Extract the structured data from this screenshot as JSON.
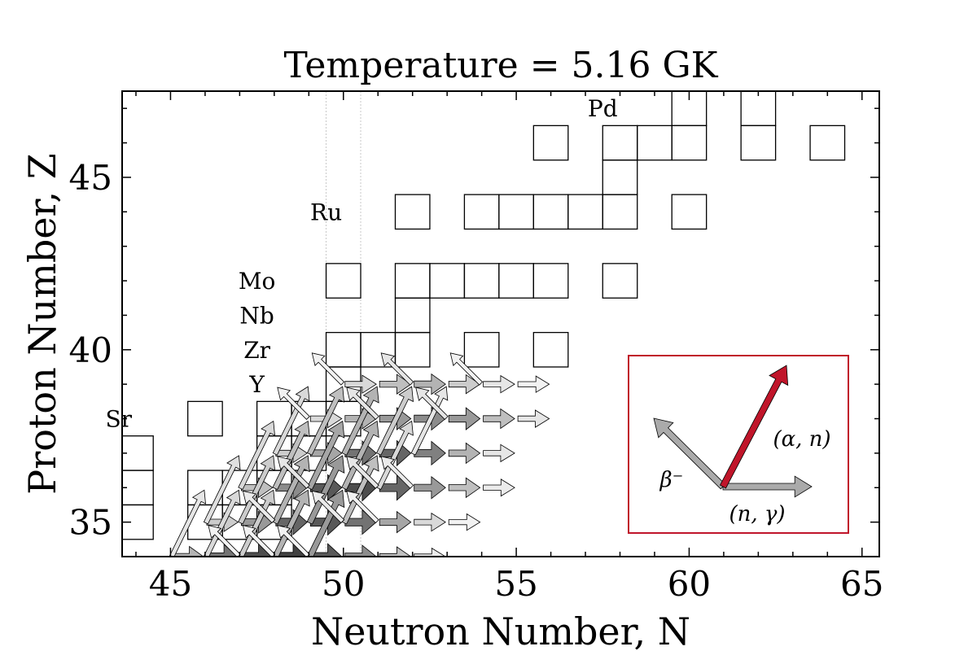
{
  "chart_data": {
    "type": "chart-of-nuclides",
    "title": "Temperature = 5.16 GK",
    "xlabel": "Neutron Number, N",
    "ylabel": "Proton Number, Z",
    "xlim": [
      43.6,
      65.5
    ],
    "ylim": [
      34,
      47.5
    ],
    "xticks": [
      45,
      50,
      55,
      60,
      65
    ],
    "yticks": [
      35,
      40,
      45
    ],
    "magic_lines_N": [
      49.5,
      50.5
    ],
    "element_labels": [
      {
        "text": "Sr",
        "N": 43.5,
        "Z": 38
      },
      {
        "text": "Y",
        "N": 47.5,
        "Z": 39
      },
      {
        "text": "Zr",
        "N": 47.5,
        "Z": 40
      },
      {
        "text": "Nb",
        "N": 47.5,
        "Z": 41
      },
      {
        "text": "Mo",
        "N": 47.5,
        "Z": 42
      },
      {
        "text": "Ru",
        "N": 49.5,
        "Z": 44
      },
      {
        "text": "Pd",
        "N": 57.5,
        "Z": 47
      }
    ],
    "stable_nuclei": [
      [
        44,
        35
      ],
      [
        44,
        36
      ],
      [
        44,
        37
      ],
      [
        46,
        35
      ],
      [
        46,
        36
      ],
      [
        47,
        35
      ],
      [
        47,
        36
      ],
      [
        48,
        35
      ],
      [
        48,
        36
      ],
      [
        46,
        38
      ],
      [
        48,
        37
      ],
      [
        48,
        38
      ],
      [
        49,
        37
      ],
      [
        49,
        38
      ],
      [
        50,
        38
      ],
      [
        50,
        39
      ],
      [
        50,
        40
      ],
      [
        51,
        40
      ],
      [
        52,
        40
      ],
      [
        54,
        40
      ],
      [
        56,
        40
      ],
      [
        52,
        41
      ],
      [
        50,
        42
      ],
      [
        52,
        42
      ],
      [
        53,
        42
      ],
      [
        54,
        42
      ],
      [
        55,
        42
      ],
      [
        56,
        42
      ],
      [
        58,
        42
      ],
      [
        52,
        44
      ],
      [
        54,
        44
      ],
      [
        55,
        44
      ],
      [
        56,
        44
      ],
      [
        57,
        44
      ],
      [
        58,
        44
      ],
      [
        60,
        44
      ],
      [
        58,
        45
      ],
      [
        56,
        46
      ],
      [
        58,
        46
      ],
      [
        59,
        46
      ],
      [
        60,
        46
      ],
      [
        62,
        46
      ],
      [
        64,
        46
      ],
      [
        60,
        47
      ],
      [
        62,
        47
      ]
    ],
    "flows_n_gamma": [
      {
        "N": 50,
        "Z": 39,
        "shade": 0.85
      },
      {
        "N": 51,
        "Z": 39,
        "shade": 0.75
      },
      {
        "N": 52,
        "Z": 39,
        "shade": 0.7
      },
      {
        "N": 53,
        "Z": 39,
        "shade": 0.8
      },
      {
        "N": 54,
        "Z": 39,
        "shade": 0.9
      },
      {
        "N": 55,
        "Z": 39,
        "shade": 0.95
      },
      {
        "N": 49,
        "Z": 38,
        "shade": 0.85
      },
      {
        "N": 50,
        "Z": 38,
        "shade": 0.7
      },
      {
        "N": 51,
        "Z": 38,
        "shade": 0.6
      },
      {
        "N": 52,
        "Z": 38,
        "shade": 0.55
      },
      {
        "N": 53,
        "Z": 38,
        "shade": 0.6
      },
      {
        "N": 54,
        "Z": 38,
        "shade": 0.75
      },
      {
        "N": 55,
        "Z": 38,
        "shade": 0.9
      },
      {
        "N": 48,
        "Z": 37,
        "shade": 0.8
      },
      {
        "N": 49,
        "Z": 37,
        "shade": 0.65
      },
      {
        "N": 50,
        "Z": 37,
        "shade": 0.45
      },
      {
        "N": 51,
        "Z": 37,
        "shade": 0.4
      },
      {
        "N": 52,
        "Z": 37,
        "shade": 0.5
      },
      {
        "N": 53,
        "Z": 37,
        "shade": 0.7
      },
      {
        "N": 54,
        "Z": 37,
        "shade": 0.9
      },
      {
        "N": 47,
        "Z": 36,
        "shade": 0.75
      },
      {
        "N": 48,
        "Z": 36,
        "shade": 0.55
      },
      {
        "N": 49,
        "Z": 36,
        "shade": 0.35
      },
      {
        "N": 50,
        "Z": 36,
        "shade": 0.3
      },
      {
        "N": 51,
        "Z": 36,
        "shade": 0.4
      },
      {
        "N": 52,
        "Z": 36,
        "shade": 0.6
      },
      {
        "N": 53,
        "Z": 36,
        "shade": 0.75
      },
      {
        "N": 54,
        "Z": 36,
        "shade": 0.92
      },
      {
        "N": 46,
        "Z": 35,
        "shade": 0.8
      },
      {
        "N": 47,
        "Z": 35,
        "shade": 0.6
      },
      {
        "N": 48,
        "Z": 35,
        "shade": 0.4
      },
      {
        "N": 49,
        "Z": 35,
        "shade": 0.35
      },
      {
        "N": 50,
        "Z": 35,
        "shade": 0.45
      },
      {
        "N": 51,
        "Z": 35,
        "shade": 0.65
      },
      {
        "N": 52,
        "Z": 35,
        "shade": 0.85
      },
      {
        "N": 53,
        "Z": 35,
        "shade": 0.95
      },
      {
        "N": 45,
        "Z": 34,
        "shade": 0.7
      },
      {
        "N": 46,
        "Z": 34,
        "shade": 0.45
      },
      {
        "N": 47,
        "Z": 34,
        "shade": 0.3
      },
      {
        "N": 48,
        "Z": 34,
        "shade": 0.25
      },
      {
        "N": 49,
        "Z": 34,
        "shade": 0.35
      },
      {
        "N": 50,
        "Z": 34,
        "shade": 0.55
      },
      {
        "N": 51,
        "Z": 34,
        "shade": 0.75
      },
      {
        "N": 52,
        "Z": 34,
        "shade": 0.92
      }
    ],
    "flows_alpha_n": [
      {
        "N": 45,
        "Z": 34,
        "shade": 0.9
      },
      {
        "N": 46,
        "Z": 34,
        "shade": 0.85
      },
      {
        "N": 47,
        "Z": 34,
        "shade": 0.8
      },
      {
        "N": 48,
        "Z": 34,
        "shade": 0.7
      },
      {
        "N": 49,
        "Z": 34,
        "shade": 0.6
      },
      {
        "N": 46,
        "Z": 35,
        "shade": 0.88
      },
      {
        "N": 47,
        "Z": 35,
        "shade": 0.8
      },
      {
        "N": 48,
        "Z": 35,
        "shade": 0.7
      },
      {
        "N": 49,
        "Z": 35,
        "shade": 0.6
      },
      {
        "N": 50,
        "Z": 35,
        "shade": 0.75
      },
      {
        "N": 47,
        "Z": 36,
        "shade": 0.85
      },
      {
        "N": 48,
        "Z": 36,
        "shade": 0.75
      },
      {
        "N": 49,
        "Z": 36,
        "shade": 0.65
      },
      {
        "N": 50,
        "Z": 36,
        "shade": 0.7
      },
      {
        "N": 51,
        "Z": 36,
        "shade": 0.85
      },
      {
        "N": 48,
        "Z": 37,
        "shade": 0.85
      },
      {
        "N": 49,
        "Z": 37,
        "shade": 0.75
      },
      {
        "N": 50,
        "Z": 37,
        "shade": 0.7
      },
      {
        "N": 51,
        "Z": 37,
        "shade": 0.8
      },
      {
        "N": 52,
        "Z": 37,
        "shade": 0.9
      }
    ],
    "flows_beta_minus": [
      {
        "N": 50,
        "Z": 39,
        "shade": 0.95
      },
      {
        "N": 52,
        "Z": 39,
        "shade": 0.9
      },
      {
        "N": 54,
        "Z": 39,
        "shade": 0.95
      },
      {
        "N": 49,
        "Z": 38,
        "shade": 0.95
      },
      {
        "N": 51,
        "Z": 38,
        "shade": 0.9
      },
      {
        "N": 53,
        "Z": 38,
        "shade": 0.9
      },
      {
        "N": 49,
        "Z": 36,
        "shade": 0.9
      },
      {
        "N": 51,
        "Z": 36,
        "shade": 0.9
      },
      {
        "N": 52,
        "Z": 36,
        "shade": 0.92
      },
      {
        "N": 48,
        "Z": 35,
        "shade": 0.92
      },
      {
        "N": 50,
        "Z": 35,
        "shade": 0.92
      },
      {
        "N": 51,
        "Z": 35,
        "shade": 0.95
      },
      {
        "N": 47,
        "Z": 34,
        "shade": 0.95
      },
      {
        "N": 48,
        "Z": 34,
        "shade": 0.95
      },
      {
        "N": 49,
        "Z": 34,
        "shade": 0.95
      }
    ],
    "legend": {
      "placement": "lower-right",
      "items": [
        {
          "label": "(α, n)",
          "color": "#c0152a"
        },
        {
          "label": "β⁻",
          "color": "#aaaaaa"
        },
        {
          "label": "(n, γ)",
          "color": "#aaaaaa"
        }
      ],
      "frame_color": "#c0152a"
    }
  }
}
